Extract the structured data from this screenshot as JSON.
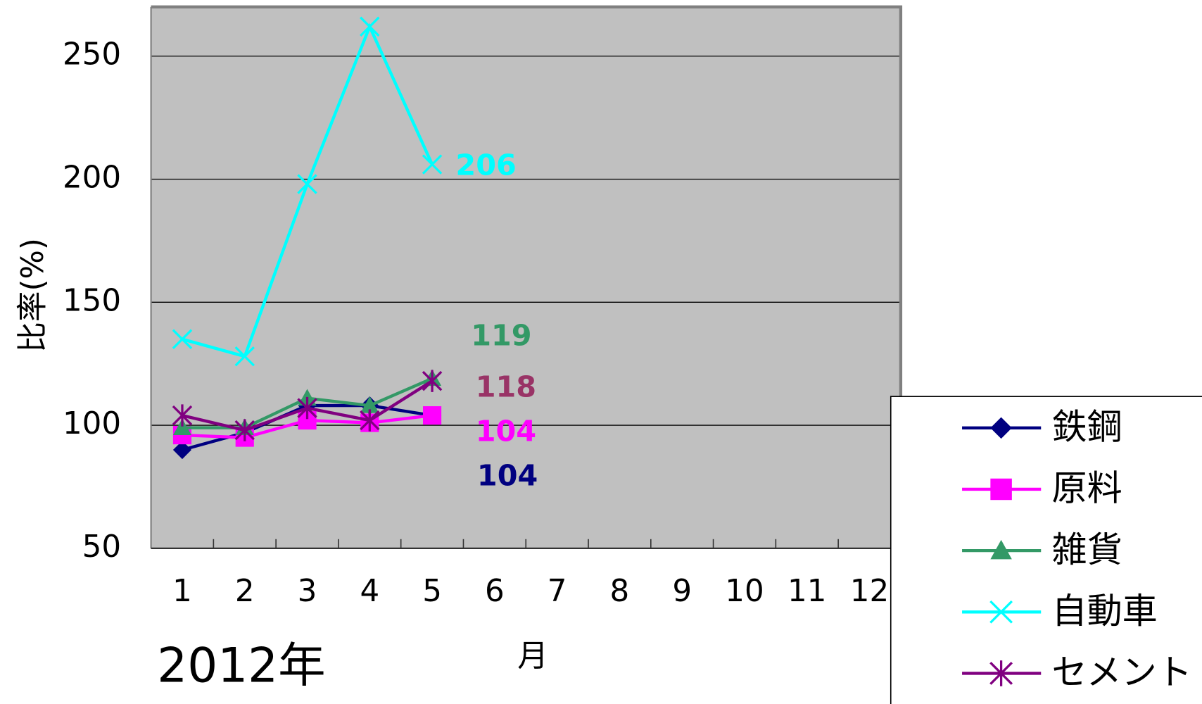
{
  "chart_data": {
    "type": "line",
    "y_label": "比率(%)",
    "x_label": "月",
    "annotation": "2012年",
    "categories": [
      "1",
      "2",
      "3",
      "4",
      "5",
      "6",
      "7",
      "8",
      "9",
      "10",
      "11",
      "12"
    ],
    "ylim": [
      50,
      270
    ],
    "yticks": [
      50,
      100,
      150,
      200,
      250
    ],
    "grid": true,
    "legend": "right",
    "series": [
      {
        "name": "鉄鋼",
        "color": "#000080",
        "label_color": "#000080",
        "marker": "diamond",
        "values": [
          90,
          97,
          108,
          108,
          104,
          null,
          null,
          null,
          null,
          null,
          null,
          null
        ]
      },
      {
        "name": "原料",
        "color": "#ff00ff",
        "label_color": "#ff00ff",
        "marker": "square",
        "values": [
          96,
          95,
          102,
          101,
          104,
          null,
          null,
          null,
          null,
          null,
          null,
          null
        ]
      },
      {
        "name": "雑貨",
        "color": "#339966",
        "label_color": "#339966",
        "marker": "triangle",
        "values": [
          99,
          99,
          111,
          108,
          119,
          null,
          null,
          null,
          null,
          null,
          null,
          null
        ]
      },
      {
        "name": "自動車",
        "color": "#00ffff",
        "label_color": "#00ffff",
        "marker": "x",
        "values": [
          135,
          128,
          198,
          262,
          206,
          null,
          null,
          null,
          null,
          null,
          null,
          null
        ]
      },
      {
        "name": "セメント",
        "color": "#800080",
        "label_color": "#993366",
        "marker": "star",
        "values": [
          104,
          98,
          107,
          102,
          118,
          null,
          null,
          null,
          null,
          null,
          null,
          null
        ]
      }
    ]
  }
}
